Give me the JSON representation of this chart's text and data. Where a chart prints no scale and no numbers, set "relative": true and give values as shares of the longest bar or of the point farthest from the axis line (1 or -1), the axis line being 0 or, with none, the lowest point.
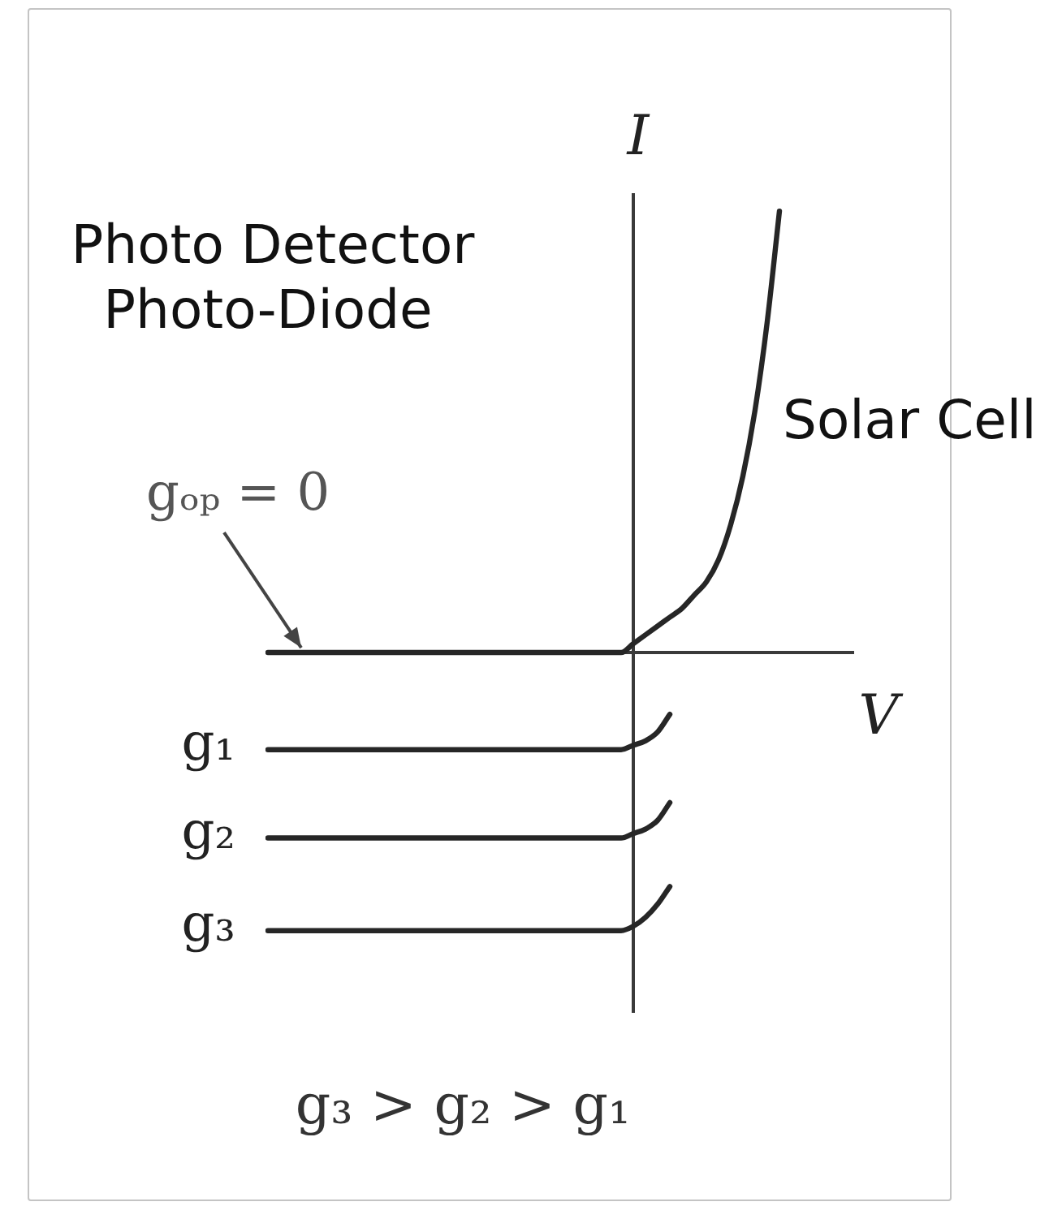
{
  "chart_data": {
    "type": "line",
    "relative": true,
    "xlabel": "V",
    "ylabel": "I",
    "categories": [
      null,
      null,
      null,
      null,
      null,
      null,
      null,
      null,
      null,
      null,
      null,
      null,
      null,
      null,
      null,
      null,
      null,
      null,
      null,
      null,
      null,
      null,
      null,
      null,
      null,
      null,
      null,
      null,
      null,
      null,
      null,
      null,
      null,
      null,
      null,
      null,
      null,
      null,
      null,
      null,
      null,
      null,
      null,
      null,
      null,
      null,
      null,
      null,
      null
    ],
    "series": [
      {
        "name": "gₒₚ = 0",
        "color": "#262626",
        "values": [
          0,
          0,
          0,
          0,
          0,
          0,
          0,
          0,
          0,
          0,
          0,
          0,
          0,
          0,
          0,
          0,
          0,
          0,
          0,
          0,
          0,
          0,
          0,
          0,
          0,
          0,
          0,
          0,
          0,
          0,
          0.02,
          0.04,
          0.06,
          0.08,
          0.1,
          0.13,
          0.16,
          0.21,
          0.29,
          0.4,
          0.55,
          0.75,
          1,
          null,
          null,
          null,
          null,
          null,
          null
        ]
      },
      {
        "name": "g₁",
        "color": "#262626",
        "values": [
          -0.22,
          -0.22,
          -0.22,
          -0.22,
          -0.22,
          -0.22,
          -0.22,
          -0.22,
          -0.22,
          -0.22,
          -0.22,
          -0.22,
          -0.22,
          -0.22,
          -0.22,
          -0.22,
          -0.22,
          -0.22,
          -0.22,
          -0.22,
          -0.22,
          -0.22,
          -0.22,
          -0.22,
          -0.22,
          -0.22,
          -0.22,
          -0.22,
          -0.22,
          -0.22,
          -0.21,
          -0.2,
          -0.18,
          -0.14,
          null,
          null,
          null,
          null,
          null,
          null,
          null,
          null,
          null,
          null,
          null,
          null,
          null,
          null,
          null
        ]
      },
      {
        "name": "g₂",
        "color": "#262626",
        "values": [
          -0.42,
          -0.42,
          -0.42,
          -0.42,
          -0.42,
          -0.42,
          -0.42,
          -0.42,
          -0.42,
          -0.42,
          -0.42,
          -0.42,
          -0.42,
          -0.42,
          -0.42,
          -0.42,
          -0.42,
          -0.42,
          -0.42,
          -0.42,
          -0.42,
          -0.42,
          -0.42,
          -0.42,
          -0.42,
          -0.42,
          -0.42,
          -0.42,
          -0.42,
          -0.42,
          -0.41,
          -0.4,
          -0.38,
          -0.34,
          null,
          null,
          null,
          null,
          null,
          null,
          null,
          null,
          null,
          null,
          null,
          null,
          null,
          null,
          null
        ]
      },
      {
        "name": "g₃",
        "color": "#262626",
        "values": [
          -0.63,
          -0.63,
          -0.63,
          -0.63,
          -0.63,
          -0.63,
          -0.63,
          -0.63,
          -0.63,
          -0.63,
          -0.63,
          -0.63,
          -0.63,
          -0.63,
          -0.63,
          -0.63,
          -0.63,
          -0.63,
          -0.63,
          -0.63,
          -0.63,
          -0.63,
          -0.63,
          -0.63,
          -0.63,
          -0.63,
          -0.63,
          -0.63,
          -0.63,
          -0.63,
          -0.62,
          -0.6,
          -0.57,
          -0.53,
          null,
          null,
          null,
          null,
          null,
          null,
          null,
          null,
          null,
          null,
          null,
          null,
          null,
          null,
          null
        ]
      }
    ],
    "annotations": [
      "Photo Detector",
      "Photo-Diode",
      "Solar Cell",
      "g₃ > g₂ > g₁"
    ]
  }
}
